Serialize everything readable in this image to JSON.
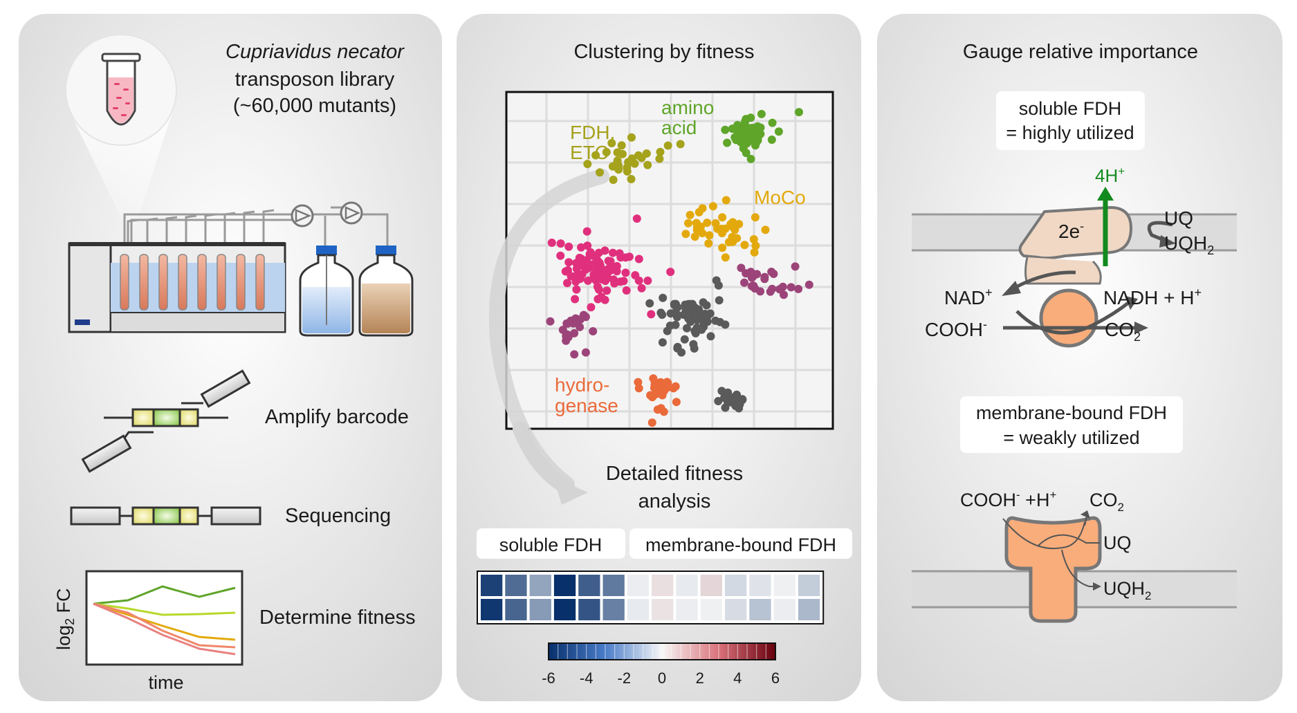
{
  "panel1": {
    "species": "Cupriavidus necator",
    "library_line1": "transposon library",
    "library_line2": "(~60,000 mutants)",
    "step_amplify": "Amplify barcode",
    "step_sequencing": "Sequencing",
    "step_fitness": "Determine fitness",
    "plot_ylabel_main": "log",
    "plot_ylabel_sub": "2",
    "plot_ylabel_tail": " FC",
    "plot_xlabel": "time"
  },
  "panel2": {
    "title": "Clustering by fitness",
    "cluster_amino_1": "amino",
    "cluster_amino_2": "acid",
    "cluster_fdh_1": "FDH,",
    "cluster_fdh_2": "ETC",
    "cluster_moco": "MoCo",
    "cluster_hydro_1": "hydro-",
    "cluster_hydro_2": "genase",
    "detail_1": "Detailed fitness",
    "detail_2": "analysis",
    "label_soluble": "soluble FDH",
    "label_membrane": "membrane-bound FDH",
    "heatmap_rows": [
      [
        -5.5,
        -4.2,
        -2.5,
        -6.3,
        -4.6,
        -3.8,
        -0.3,
        0.6,
        -0.4,
        0.8,
        -0.9,
        -0.6,
        -0.2,
        -1.3
      ],
      [
        -5.8,
        -4.4,
        -2.8,
        -6.6,
        -4.9,
        -3.6,
        -0.4,
        0.5,
        -0.3,
        -0.2,
        -0.8,
        -1.6,
        -0.3,
        -1.9
      ]
    ],
    "colorbar_ticks": [
      "-6",
      "-4",
      "-2",
      "0",
      "2",
      "4",
      "6"
    ],
    "colorbar_colors": {
      "low": "#08306b",
      "mid": "#f7f7f7",
      "high": "#67000d"
    }
  },
  "panel3": {
    "title": "Gauge relative importance",
    "box1_line1": "soluble FDH",
    "box1_line2": "= highly utilized",
    "proton_main": "4H",
    "proton_sup": "+",
    "electron_main": "2e",
    "electron_sup": "-",
    "uq": "UQ",
    "uqh_main": "UQH",
    "uqh_sub": "2",
    "nad_main": "NAD",
    "nad_sup": "+",
    "nadh_main": "NADH + H",
    "nadh_sup": "+",
    "cooh_main": "COOH",
    "cooh_sup": "-",
    "co2_main": "CO",
    "co2_sub": "2",
    "box2_line1": "membrane-bound FDH",
    "box2_line2": "= weakly utilized",
    "m_cooh_main": "COOH",
    "m_cooh_sup": "-",
    "m_cooh_tail": " +H",
    "m_cooh_sup2": "+",
    "m_co2_main": "CO",
    "m_co2_sub": "2",
    "m_uq": "UQ",
    "m_uqh_main": "UQH",
    "m_uqh_sub": "2"
  },
  "colors": {
    "amino_acid": "#5fa52a",
    "fdh_etc": "#a5a21c",
    "moco": "#e3a90c",
    "hydrogenase": "#ea6a3a",
    "pink_cluster": "#e0307d",
    "purple_cluster": "#9c4479",
    "grey_cluster": "#5a5a5a",
    "proton_arrow": "#138a1e",
    "enzyme_fill": "#f8ad7b",
    "soluble_enzyme_fill": "#f0d8c4"
  }
}
